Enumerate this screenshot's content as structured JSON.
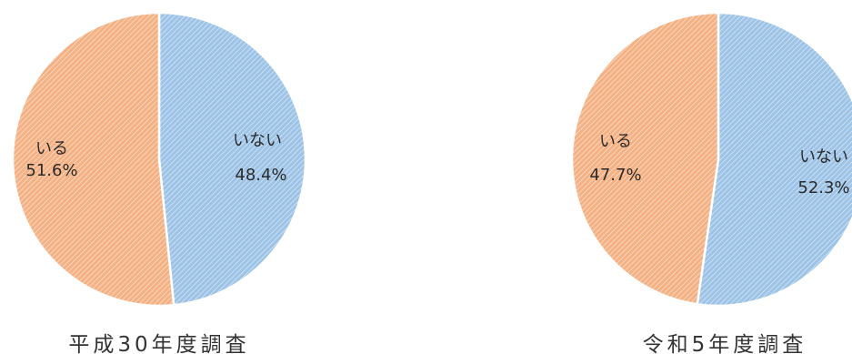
{
  "chart_data": [
    {
      "type": "pie",
      "title": "平成30年度調査",
      "slices": [
        {
          "name": "いない",
          "value": 48.4,
          "value_label": "48.4%"
        },
        {
          "name": "いる",
          "value": 51.6,
          "value_label": "51.6%"
        }
      ],
      "colors": {
        "いない": "#9dc3e6",
        "いる": "#f4b183"
      },
      "fill_pattern": "diagonal-hatch",
      "legend": "none"
    },
    {
      "type": "pie",
      "title": "令和5年度調査",
      "slices": [
        {
          "name": "いない",
          "value": 52.3,
          "value_label": "52.3%"
        },
        {
          "name": "いる",
          "value": 47.7,
          "value_label": "47.7%"
        }
      ],
      "colors": {
        "いない": "#9dc3e6",
        "いる": "#f4b183"
      },
      "fill_pattern": "diagonal-hatch",
      "legend": "none"
    }
  ]
}
